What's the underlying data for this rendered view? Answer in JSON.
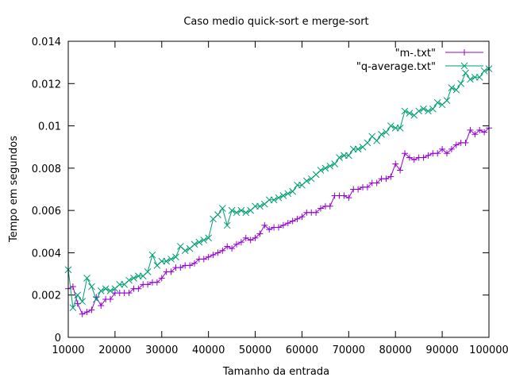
{
  "chart_data": {
    "type": "line",
    "title": "Caso medio quick-sort e merge-sort",
    "xlabel": "Tamanho da entrada",
    "ylabel": "Tempo em segundos",
    "xlim": [
      10000,
      100000
    ],
    "ylim": [
      0,
      0.014
    ],
    "x_ticks": [
      10000,
      20000,
      30000,
      40000,
      50000,
      60000,
      70000,
      80000,
      90000,
      100000
    ],
    "x_tick_labels": [
      "10000",
      "20000",
      "30000",
      "40000",
      "50000",
      "60000",
      "70000",
      "80000",
      "90000",
      "100000"
    ],
    "y_ticks": [
      0,
      0.002,
      0.004,
      0.006,
      0.008,
      0.01,
      0.012,
      0.014
    ],
    "y_tick_labels": [
      "0",
      "0.002",
      "0.004",
      "0.006",
      "0.008",
      "0.01",
      "0.012",
      "0.014"
    ],
    "grid": false,
    "legend_position": "top-right",
    "series": [
      {
        "name": "\"m-.txt\"",
        "color": "#9400d3",
        "marker": "plus",
        "x": [
          10000,
          11000,
          12000,
          13000,
          14000,
          15000,
          16000,
          17000,
          18000,
          19000,
          20000,
          21000,
          22000,
          23000,
          24000,
          25000,
          26000,
          27000,
          28000,
          29000,
          30000,
          31000,
          32000,
          33000,
          34000,
          35000,
          36000,
          37000,
          38000,
          39000,
          40000,
          41000,
          42000,
          43000,
          44000,
          45000,
          46000,
          47000,
          48000,
          49000,
          50000,
          51000,
          52000,
          53000,
          54000,
          55000,
          56000,
          57000,
          58000,
          59000,
          60000,
          61000,
          62000,
          63000,
          64000,
          65000,
          66000,
          67000,
          68000,
          69000,
          70000,
          71000,
          72000,
          73000,
          74000,
          75000,
          76000,
          77000,
          78000,
          79000,
          80000,
          81000,
          82000,
          83000,
          84000,
          85000,
          86000,
          87000,
          88000,
          89000,
          90000,
          91000,
          92000,
          93000,
          94000,
          95000,
          96000,
          97000,
          98000,
          99000,
          100000
        ],
        "y": [
          0.0023,
          0.0024,
          0.0016,
          0.0011,
          0.0012,
          0.0013,
          0.0019,
          0.0015,
          0.0018,
          0.0018,
          0.0021,
          0.0021,
          0.0021,
          0.0021,
          0.0023,
          0.0023,
          0.0025,
          0.0025,
          0.0026,
          0.0026,
          0.0028,
          0.0031,
          0.0031,
          0.0033,
          0.0033,
          0.0034,
          0.0034,
          0.0035,
          0.0037,
          0.0037,
          0.0038,
          0.0039,
          0.004,
          0.0041,
          0.0043,
          0.0042,
          0.0044,
          0.0045,
          0.0047,
          0.0046,
          0.0047,
          0.0049,
          0.0053,
          0.0051,
          0.0052,
          0.0052,
          0.0053,
          0.0054,
          0.0055,
          0.0056,
          0.0057,
          0.0059,
          0.0059,
          0.0059,
          0.0061,
          0.0062,
          0.0062,
          0.0067,
          0.0067,
          0.0067,
          0.0066,
          0.007,
          0.007,
          0.0071,
          0.0071,
          0.0073,
          0.0073,
          0.0075,
          0.0075,
          0.0076,
          0.0082,
          0.0079,
          0.0087,
          0.0085,
          0.0084,
          0.0085,
          0.0085,
          0.0086,
          0.0087,
          0.0087,
          0.0089,
          0.0087,
          0.0089,
          0.0091,
          0.0092,
          0.0092,
          0.0098,
          0.0096,
          0.0098,
          0.0097,
          0.0099
        ]
      },
      {
        "name": "\"q-average.txt\"",
        "color": "#009e73",
        "marker": "cross",
        "x": [
          10000,
          11000,
          12000,
          13000,
          14000,
          15000,
          16000,
          17000,
          18000,
          19000,
          20000,
          21000,
          22000,
          23000,
          24000,
          25000,
          26000,
          27000,
          28000,
          29000,
          30000,
          31000,
          32000,
          33000,
          34000,
          35000,
          36000,
          37000,
          38000,
          39000,
          40000,
          41000,
          42000,
          43000,
          44000,
          45000,
          46000,
          47000,
          48000,
          49000,
          50000,
          51000,
          52000,
          53000,
          54000,
          55000,
          56000,
          57000,
          58000,
          59000,
          60000,
          61000,
          62000,
          63000,
          64000,
          65000,
          66000,
          67000,
          68000,
          69000,
          70000,
          71000,
          72000,
          73000,
          74000,
          75000,
          76000,
          77000,
          78000,
          79000,
          80000,
          81000,
          82000,
          83000,
          84000,
          85000,
          86000,
          87000,
          88000,
          89000,
          90000,
          91000,
          92000,
          93000,
          94000,
          95000,
          96000,
          97000,
          98000,
          99000,
          100000
        ],
        "y": [
          0.0032,
          0.0014,
          0.002,
          0.0017,
          0.0028,
          0.0024,
          0.0018,
          0.0022,
          0.0023,
          0.0022,
          0.0023,
          0.0025,
          0.0025,
          0.0027,
          0.0028,
          0.0029,
          0.0029,
          0.0031,
          0.0039,
          0.0034,
          0.0036,
          0.0036,
          0.0037,
          0.0038,
          0.0043,
          0.0041,
          0.0042,
          0.0044,
          0.0045,
          0.0046,
          0.0047,
          0.0056,
          0.0058,
          0.0061,
          0.0053,
          0.006,
          0.0059,
          0.006,
          0.0059,
          0.006,
          0.0062,
          0.0062,
          0.0063,
          0.0065,
          0.0065,
          0.0066,
          0.0067,
          0.0068,
          0.0069,
          0.0072,
          0.0072,
          0.0074,
          0.0075,
          0.0077,
          0.0079,
          0.008,
          0.0081,
          0.0082,
          0.0085,
          0.0086,
          0.0086,
          0.0089,
          0.0089,
          0.009,
          0.0092,
          0.0095,
          0.0093,
          0.0096,
          0.0097,
          0.01,
          0.0099,
          0.0099,
          0.0107,
          0.0106,
          0.0105,
          0.0107,
          0.0108,
          0.0107,
          0.0108,
          0.0111,
          0.011,
          0.0112,
          0.0118,
          0.0117,
          0.012,
          0.0125,
          0.0122,
          0.0123,
          0.0123,
          0.0126,
          0.0127
        ]
      }
    ]
  }
}
